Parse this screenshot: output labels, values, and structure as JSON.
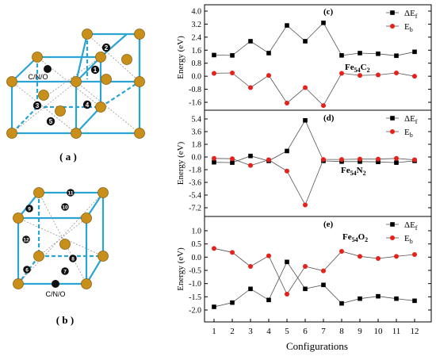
{
  "figure": {
    "label_a": "( a )",
    "label_b": "( b )",
    "atom_label_a": "C/N/O",
    "atom_label_b": "C/N/O",
    "site_numbers_a": [
      "1",
      "2",
      "3",
      "4",
      "5"
    ],
    "site_numbers_b": [
      "6",
      "7",
      "8",
      "9",
      "10",
      "11",
      "12"
    ]
  },
  "colors": {
    "frame": "#2aa4d4",
    "fe_atom": "#c8901a",
    "interstitial": "#111111",
    "series_dEf": "#000000",
    "series_Eb": "#e8201a"
  },
  "chart_data": [
    {
      "type": "line",
      "panel": "(c)",
      "formula": "Fe54C2",
      "ylabel": "Energy (eV)",
      "x": [
        1,
        2,
        3,
        4,
        5,
        6,
        7,
        8,
        9,
        10,
        11,
        12
      ],
      "ylim": [
        -2.0,
        4.0
      ],
      "yticks": [
        "4.0",
        "3.2",
        "2.4",
        "1.6",
        "0.8",
        "0.0",
        "-0.8",
        "-1.6"
      ],
      "legend_position": "top-right",
      "series": [
        {
          "name": "ΔEf",
          "marker": "square",
          "values": [
            1.3,
            1.28,
            2.15,
            1.42,
            3.12,
            2.15,
            3.28,
            1.28,
            1.42,
            1.38,
            1.26,
            1.5
          ]
        },
        {
          "name": "Eb",
          "marker": "circle",
          "values": [
            0.18,
            0.2,
            -0.7,
            0.05,
            -1.65,
            -0.7,
            -1.8,
            0.18,
            0.05,
            0.08,
            0.2,
            0.0
          ]
        }
      ]
    },
    {
      "type": "line",
      "panel": "(d)",
      "formula": "Fe54N2",
      "ylabel": "Energy (eV)",
      "x": [
        1,
        2,
        3,
        4,
        5,
        6,
        7,
        8,
        9,
        10,
        11,
        12
      ],
      "ylim": [
        -8.4,
        6.0
      ],
      "yticks": [
        "5.4",
        "3.6",
        "1.8",
        "0.0",
        "-1.8",
        "-3.6",
        "-5.4",
        "-7.2"
      ],
      "legend_position": "top-right",
      "series": [
        {
          "name": "ΔEf",
          "marker": "square",
          "values": [
            -0.75,
            -0.8,
            0.15,
            -0.55,
            0.85,
            5.2,
            -0.55,
            -0.65,
            -0.65,
            -0.7,
            -0.8,
            -0.55
          ]
        },
        {
          "name": "Eb",
          "marker": "circle",
          "values": [
            -0.2,
            -0.25,
            -1.2,
            -0.4,
            -2.0,
            -6.8,
            -0.35,
            -0.35,
            -0.3,
            -0.3,
            -0.2,
            -0.4
          ]
        }
      ]
    },
    {
      "type": "line",
      "panel": "(e)",
      "formula": "Fe54O2",
      "ylabel": "Energy (eV)",
      "xlabel": "Configurations",
      "x": [
        1,
        2,
        3,
        4,
        5,
        6,
        7,
        8,
        9,
        10,
        11,
        12
      ],
      "ylim": [
        -2.3,
        1.35
      ],
      "yticks": [
        "1.0",
        "0.5",
        "0.0",
        "-0.5",
        "-1.0",
        "-1.5",
        "-2.0"
      ],
      "legend_position": "top-right",
      "series": [
        {
          "name": "ΔEf",
          "marker": "square",
          "values": [
            -1.88,
            -1.72,
            -1.2,
            -1.62,
            -0.18,
            -1.2,
            -1.05,
            -1.75,
            -1.57,
            -1.48,
            -1.57,
            -1.65
          ]
        },
        {
          "name": "Eb",
          "marker": "circle",
          "values": [
            0.33,
            0.18,
            -0.35,
            0.05,
            -1.4,
            -0.35,
            -0.52,
            0.22,
            0.03,
            -0.05,
            0.03,
            0.1
          ]
        }
      ]
    }
  ]
}
